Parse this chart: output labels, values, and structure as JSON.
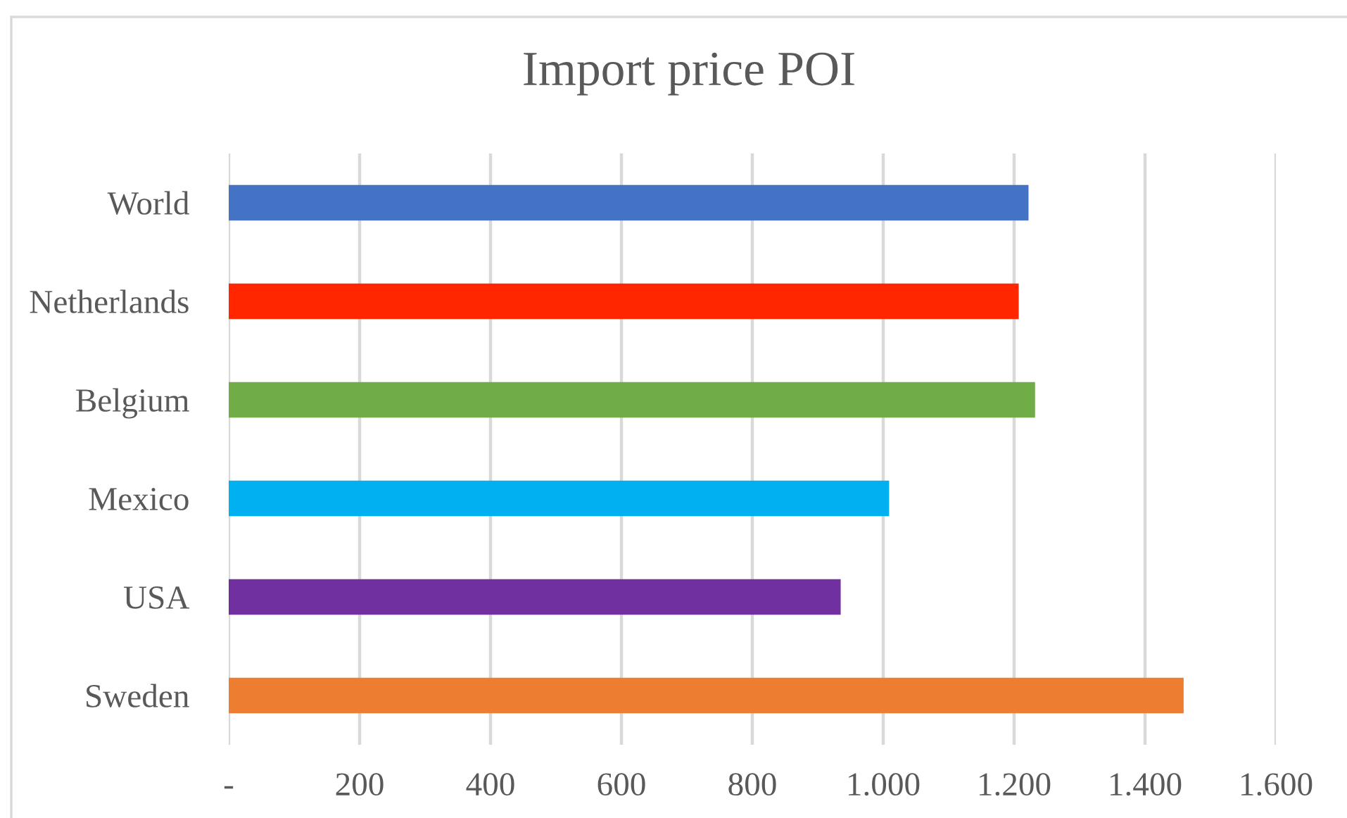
{
  "chart_data": {
    "type": "bar",
    "orientation": "horizontal",
    "title": "Import price POI",
    "categories": [
      "World",
      "Netherlands",
      "Belgium",
      "Mexico",
      "USA",
      "Sweden"
    ],
    "values": [
      1222,
      1207,
      1232,
      1009,
      935,
      1459
    ],
    "colors": [
      "#4472c4",
      "#ff2600",
      "#70ad47",
      "#00b0f0",
      "#7030a0",
      "#ed7d31"
    ],
    "xlim": [
      0,
      1600
    ],
    "xticks": [
      {
        "value": 0,
        "label": "-"
      },
      200,
      400,
      600,
      800,
      {
        "value": 1000,
        "label": "1.000"
      },
      {
        "value": 1200,
        "label": "1.200"
      },
      {
        "value": 1400,
        "label": "1.400"
      },
      {
        "value": 1600,
        "label": "1.600"
      }
    ],
    "grid": "x"
  }
}
